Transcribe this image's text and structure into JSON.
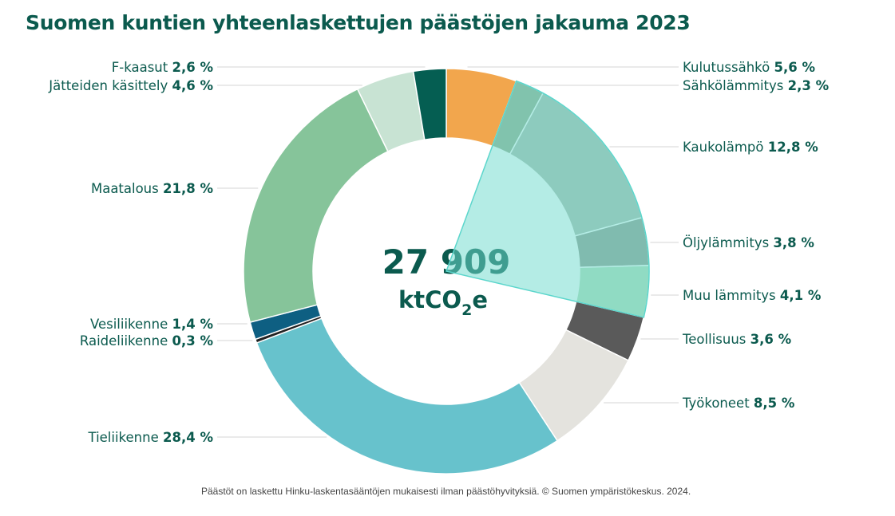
{
  "chart_data": {
    "type": "pie",
    "variant": "donut",
    "title": "Suomen kuntien yhteenlaskettujen päästöjen jakauma 2023",
    "center_value": "27 909",
    "center_unit": "ktCO",
    "center_unit_sub": "2",
    "center_unit_tail": "e",
    "unit_suffix": " %",
    "footnote": "Päästöt on laskettu Hinku-laskentasääntöjen mukaisesti ilman päästöhyvityksiä. © Suomen ympäristökeskus. 2024.",
    "highlight_group": [
      "Sähkölämmitys",
      "Kaukolämpö",
      "Öljylämmitys",
      "Muu lämmitys"
    ],
    "highlight_color": "#6fdacd",
    "slices": [
      {
        "label": "Kulutussähkö",
        "value": 5.6,
        "display": "5,6",
        "color": "#f2a64d"
      },
      {
        "label": "Sähkölämmitys",
        "value": 2.3,
        "display": "2,3",
        "color": "#95a98b"
      },
      {
        "label": "Kaukolämpö",
        "value": 12.8,
        "display": "12,8",
        "color": "#aebbae"
      },
      {
        "label": "Öljylämmitys",
        "value": 3.8,
        "display": "3,8",
        "color": "#939a8e"
      },
      {
        "label": "Muu lämmitys",
        "value": 4.1,
        "display": "4,1",
        "color": "#b3dcb8"
      },
      {
        "label": "Teollisuus",
        "value": 3.6,
        "display": "3,6",
        "color": "#5a5a5a"
      },
      {
        "label": "Työkoneet",
        "value": 8.5,
        "display": "8,5",
        "color": "#e4e3de"
      },
      {
        "label": "Tieliikenne",
        "value": 28.4,
        "display": "28,4",
        "color": "#67c2cc"
      },
      {
        "label": "Raideliikenne",
        "value": 0.3,
        "display": "0,3",
        "color": "#222222"
      },
      {
        "label": "Vesiliikenne",
        "value": 1.4,
        "display": "1,4",
        "color": "#0e5f82"
      },
      {
        "label": "Maatalous",
        "value": 21.8,
        "display": "21,8",
        "color": "#86c49a"
      },
      {
        "label": "Jätteiden käsittely",
        "value": 4.6,
        "display": "4,6",
        "color": "#c8e3d3"
      },
      {
        "label": "F-kaasut",
        "value": 2.6,
        "display": "2,6",
        "color": "#055e52"
      }
    ]
  }
}
